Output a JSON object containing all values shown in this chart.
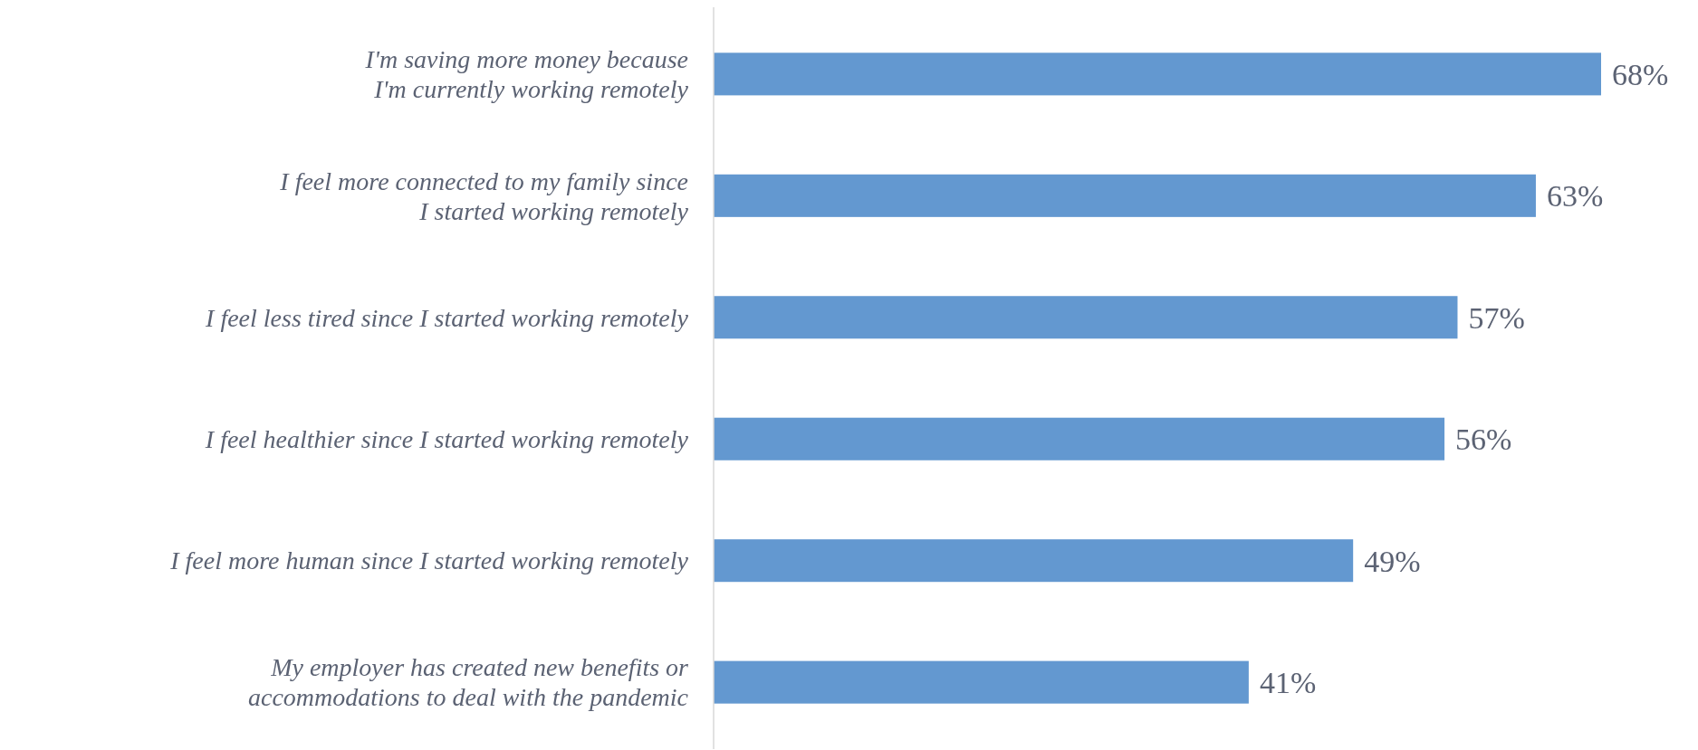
{
  "chart_data": {
    "type": "bar",
    "orientation": "horizontal",
    "categories": [
      "I'm saving more money because\nI'm currently working remotely",
      "I feel more connected to my family since\nI started working remotely",
      "I feel less tired since I started working remotely",
      "I feel healthier since I started working remotely",
      "I feel more human since I started working remotely",
      "My employer has created new benefits or\naccommodations to deal with the pandemic"
    ],
    "values": [
      68,
      63,
      57,
      56,
      49,
      41
    ],
    "value_labels": [
      "68%",
      "63%",
      "57%",
      "56%",
      "49%",
      "41%"
    ],
    "color": "#6398d0"
  }
}
